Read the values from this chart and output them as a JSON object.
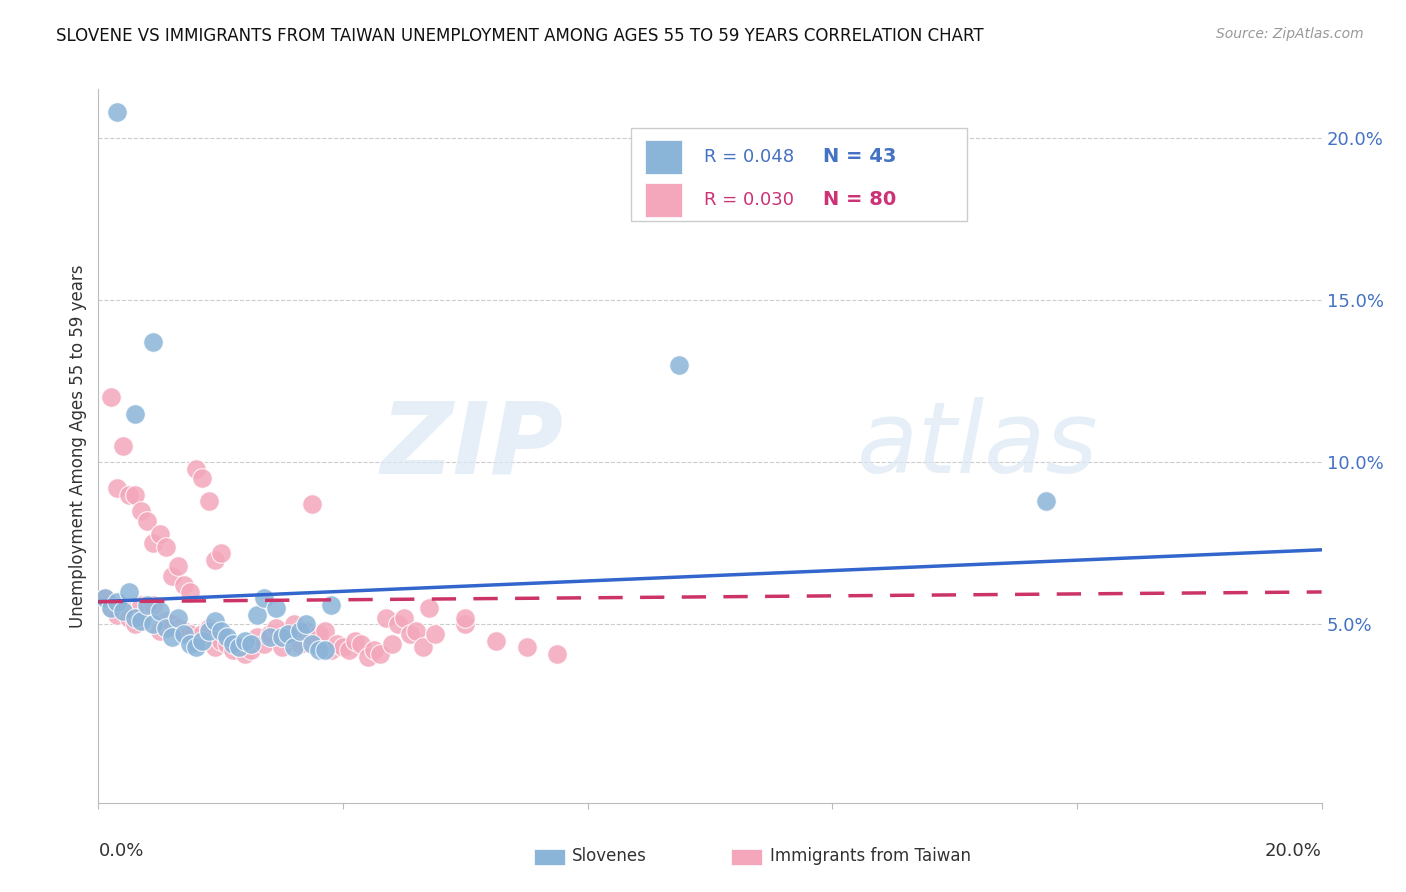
{
  "title": "SLOVENE VS IMMIGRANTS FROM TAIWAN UNEMPLOYMENT AMONG AGES 55 TO 59 YEARS CORRELATION CHART",
  "source": "Source: ZipAtlas.com",
  "ylabel": "Unemployment Among Ages 55 to 59 years",
  "xlim": [
    0.0,
    0.2
  ],
  "ylim": [
    -0.005,
    0.215
  ],
  "yticks": [
    0.05,
    0.1,
    0.15,
    0.2
  ],
  "ytick_labels": [
    "5.0%",
    "10.0%",
    "15.0%",
    "20.0%"
  ],
  "xticks": [
    0.0,
    0.04,
    0.08,
    0.12,
    0.16,
    0.2
  ],
  "legend_blue_r": "R = 0.048",
  "legend_blue_n": "N = 43",
  "legend_pink_r": "R = 0.030",
  "legend_pink_n": "N = 80",
  "legend_label_blue": "Slovenes",
  "legend_label_pink": "Immigrants from Taiwan",
  "color_blue": "#8ab4d8",
  "color_pink": "#f4a7bb",
  "color_blue_line": "#3366cc",
  "color_pink_line": "#cc3366",
  "watermark_zip": "ZIP",
  "watermark_atlas": "atlas",
  "blue_points": [
    [
      0.001,
      0.058
    ],
    [
      0.002,
      0.055
    ],
    [
      0.003,
      0.057
    ],
    [
      0.004,
      0.054
    ],
    [
      0.005,
      0.06
    ],
    [
      0.006,
      0.052
    ],
    [
      0.007,
      0.051
    ],
    [
      0.008,
      0.056
    ],
    [
      0.009,
      0.05
    ],
    [
      0.01,
      0.054
    ],
    [
      0.011,
      0.049
    ],
    [
      0.012,
      0.046
    ],
    [
      0.013,
      0.052
    ],
    [
      0.014,
      0.047
    ],
    [
      0.015,
      0.044
    ],
    [
      0.016,
      0.043
    ],
    [
      0.017,
      0.045
    ],
    [
      0.018,
      0.048
    ],
    [
      0.019,
      0.051
    ],
    [
      0.02,
      0.048
    ],
    [
      0.021,
      0.046
    ],
    [
      0.022,
      0.044
    ],
    [
      0.023,
      0.043
    ],
    [
      0.024,
      0.045
    ],
    [
      0.025,
      0.044
    ],
    [
      0.026,
      0.053
    ],
    [
      0.027,
      0.058
    ],
    [
      0.028,
      0.046
    ],
    [
      0.029,
      0.055
    ],
    [
      0.03,
      0.046
    ],
    [
      0.031,
      0.047
    ],
    [
      0.032,
      0.043
    ],
    [
      0.033,
      0.048
    ],
    [
      0.034,
      0.05
    ],
    [
      0.035,
      0.044
    ],
    [
      0.036,
      0.042
    ],
    [
      0.037,
      0.042
    ],
    [
      0.038,
      0.056
    ],
    [
      0.003,
      0.208
    ],
    [
      0.006,
      0.115
    ],
    [
      0.009,
      0.137
    ],
    [
      0.095,
      0.13
    ],
    [
      0.155,
      0.088
    ]
  ],
  "pink_points": [
    [
      0.001,
      0.058
    ],
    [
      0.002,
      0.055
    ],
    [
      0.003,
      0.053
    ],
    [
      0.004,
      0.055
    ],
    [
      0.005,
      0.052
    ],
    [
      0.006,
      0.05
    ],
    [
      0.007,
      0.056
    ],
    [
      0.008,
      0.054
    ],
    [
      0.009,
      0.056
    ],
    [
      0.01,
      0.048
    ],
    [
      0.011,
      0.051
    ],
    [
      0.012,
      0.05
    ],
    [
      0.013,
      0.049
    ],
    [
      0.014,
      0.048
    ],
    [
      0.015,
      0.047
    ],
    [
      0.016,
      0.045
    ],
    [
      0.017,
      0.047
    ],
    [
      0.018,
      0.049
    ],
    [
      0.019,
      0.043
    ],
    [
      0.02,
      0.045
    ],
    [
      0.021,
      0.044
    ],
    [
      0.022,
      0.042
    ],
    [
      0.023,
      0.043
    ],
    [
      0.024,
      0.041
    ],
    [
      0.025,
      0.042
    ],
    [
      0.026,
      0.046
    ],
    [
      0.027,
      0.044
    ],
    [
      0.028,
      0.047
    ],
    [
      0.029,
      0.049
    ],
    [
      0.03,
      0.043
    ],
    [
      0.031,
      0.046
    ],
    [
      0.032,
      0.05
    ],
    [
      0.033,
      0.044
    ],
    [
      0.034,
      0.048
    ],
    [
      0.035,
      0.046
    ],
    [
      0.036,
      0.047
    ],
    [
      0.037,
      0.048
    ],
    [
      0.038,
      0.042
    ],
    [
      0.039,
      0.044
    ],
    [
      0.04,
      0.043
    ],
    [
      0.041,
      0.042
    ],
    [
      0.042,
      0.045
    ],
    [
      0.043,
      0.044
    ],
    [
      0.044,
      0.04
    ],
    [
      0.045,
      0.042
    ],
    [
      0.046,
      0.041
    ],
    [
      0.047,
      0.052
    ],
    [
      0.048,
      0.044
    ],
    [
      0.049,
      0.05
    ],
    [
      0.05,
      0.052
    ],
    [
      0.051,
      0.047
    ],
    [
      0.052,
      0.048
    ],
    [
      0.053,
      0.043
    ],
    [
      0.054,
      0.055
    ],
    [
      0.055,
      0.047
    ],
    [
      0.06,
      0.05
    ],
    [
      0.002,
      0.12
    ],
    [
      0.004,
      0.105
    ],
    [
      0.003,
      0.092
    ],
    [
      0.005,
      0.09
    ],
    [
      0.006,
      0.09
    ],
    [
      0.007,
      0.085
    ],
    [
      0.008,
      0.082
    ],
    [
      0.009,
      0.075
    ],
    [
      0.01,
      0.078
    ],
    [
      0.011,
      0.074
    ],
    [
      0.012,
      0.065
    ],
    [
      0.013,
      0.068
    ],
    [
      0.014,
      0.062
    ],
    [
      0.015,
      0.06
    ],
    [
      0.016,
      0.098
    ],
    [
      0.017,
      0.095
    ],
    [
      0.018,
      0.088
    ],
    [
      0.019,
      0.07
    ],
    [
      0.02,
      0.072
    ],
    [
      0.035,
      0.087
    ],
    [
      0.06,
      0.052
    ],
    [
      0.065,
      0.045
    ],
    [
      0.07,
      0.043
    ],
    [
      0.075,
      0.041
    ]
  ],
  "blue_line": [
    [
      0.0,
      0.057
    ],
    [
      0.2,
      0.073
    ]
  ],
  "pink_line": [
    [
      0.0,
      0.057
    ],
    [
      0.2,
      0.06
    ]
  ]
}
